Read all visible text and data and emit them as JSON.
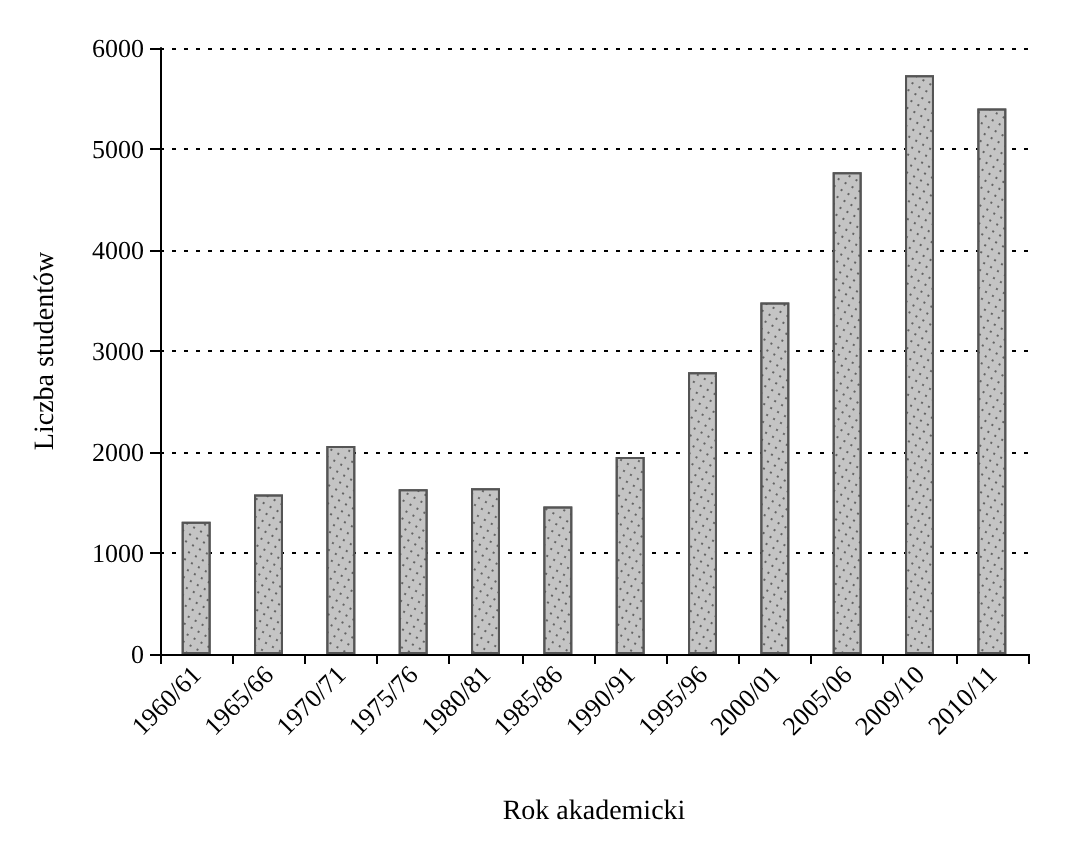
{
  "chart_data": {
    "type": "bar",
    "xlabel": "Rok akademicki",
    "ylabel": "Liczba studentów",
    "categories": [
      "1960/61",
      "1965/66",
      "1970/71",
      "1975/76",
      "1980/81",
      "1985/86",
      "1990/91",
      "1995/96",
      "2000/01",
      "2005/06",
      "2009/10",
      "2010/11"
    ],
    "values": [
      1310,
      1580,
      2060,
      1630,
      1640,
      1460,
      1950,
      2790,
      3480,
      4770,
      5730,
      5400
    ],
    "color": "#c4c4c4",
    "ylim": [
      0,
      6000
    ],
    "yticks": [
      0,
      1000,
      2000,
      3000,
      4000,
      5000,
      6000
    ],
    "grid": "y"
  }
}
